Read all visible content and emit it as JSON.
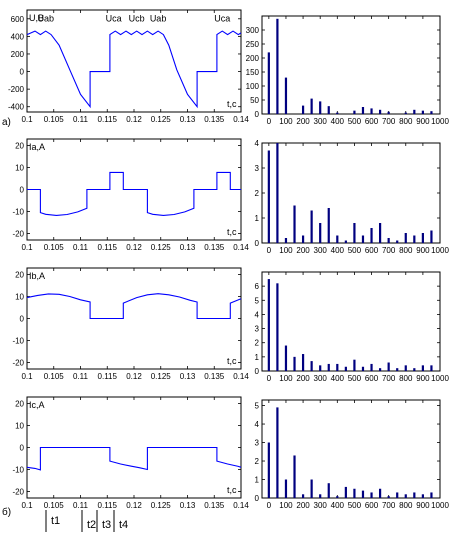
{
  "panel_letters": [
    "a)",
    "б)"
  ],
  "time_markers": [
    "t1",
    "t2",
    "t3",
    "t4"
  ],
  "chart_data": [
    {
      "type": "line",
      "ylabel": "U,B",
      "xlabel": "t,c",
      "xlim": [
        0.1,
        0.14
      ],
      "ylim": [
        -460,
        700
      ],
      "xticks": [
        0.1,
        0.105,
        0.11,
        0.115,
        0.12,
        0.125,
        0.13,
        0.135,
        0.14
      ],
      "xtick_labels": [
        "0.1",
        "0.105",
        "0.11",
        "0.115",
        "0.12",
        "0.125",
        "0.13",
        "0.135",
        "0.14"
      ],
      "yticks": [
        -400,
        -200,
        0,
        200,
        400,
        600
      ],
      "ytick_labels": [
        "-400",
        "-200",
        "0",
        "200",
        "400",
        "600"
      ],
      "annotations": [
        {
          "text": "Uab",
          "x": 0.1035,
          "y": 570
        },
        {
          "text": "Uca",
          "x": 0.1162,
          "y": 570
        },
        {
          "text": "Ucb",
          "x": 0.1205,
          "y": 570
        },
        {
          "text": "Uab",
          "x": 0.1245,
          "y": 570
        },
        {
          "text": "Uca",
          "x": 0.1365,
          "y": 570
        }
      ],
      "color": "#0000ff",
      "x": [
        0.1,
        0.1015,
        0.1025,
        0.1035,
        0.1045,
        0.106,
        0.108,
        0.11,
        0.1118,
        0.1118,
        0.1155,
        0.1155,
        0.1165,
        0.1175,
        0.1185,
        0.1195,
        0.1205,
        0.1215,
        0.1225,
        0.1235,
        0.1245,
        0.1255,
        0.1265,
        0.128,
        0.13,
        0.1318,
        0.1318,
        0.1355,
        0.1355,
        0.1365,
        0.1375,
        0.1385,
        0.1395,
        0.14
      ],
      "y": [
        420,
        460,
        420,
        460,
        420,
        300,
        20,
        -260,
        -400,
        0,
        0,
        420,
        460,
        420,
        460,
        420,
        460,
        420,
        460,
        420,
        460,
        420,
        300,
        20,
        -260,
        -400,
        0,
        0,
        420,
        460,
        420,
        460,
        420,
        440
      ]
    },
    {
      "type": "bar",
      "xlim": [
        -40,
        1000
      ],
      "ylim": [
        0,
        350
      ],
      "xticks": [
        0,
        100,
        200,
        300,
        400,
        500,
        600,
        700,
        800,
        900,
        1000
      ],
      "xtick_labels": [
        "0",
        "100",
        "200",
        "300",
        "400",
        "500",
        "600",
        "700",
        "800",
        "900",
        "1000"
      ],
      "yticks": [
        0,
        50,
        100,
        150,
        200,
        250,
        300
      ],
      "ytick_labels": [
        "0",
        "50",
        "100",
        "150",
        "200",
        "250",
        "300"
      ],
      "color": "#00007f",
      "x": [
        0,
        50,
        100,
        150,
        200,
        250,
        300,
        350,
        400,
        450,
        500,
        550,
        600,
        650,
        700,
        750,
        800,
        850,
        900,
        950
      ],
      "values": [
        220,
        340,
        130,
        0,
        30,
        55,
        45,
        28,
        5,
        0,
        12,
        25,
        20,
        15,
        8,
        0,
        5,
        15,
        12,
        10
      ]
    },
    {
      "type": "line",
      "ylabel": "Ia,A",
      "xlabel": "t,c",
      "xlim": [
        0.1,
        0.14
      ],
      "ylim": [
        -23,
        23
      ],
      "xticks": [
        0.1,
        0.105,
        0.11,
        0.115,
        0.12,
        0.125,
        0.13,
        0.135,
        0.14
      ],
      "xtick_labels": [
        "0.1",
        "0.105",
        "0.11",
        "0.115",
        "0.12",
        "0.125",
        "0.13",
        "0.135",
        "0.14"
      ],
      "yticks": [
        -20,
        -10,
        0,
        10,
        20
      ],
      "ytick_labels": [
        "-20",
        "-10",
        "0",
        "10",
        "20"
      ],
      "color": "#0000ff",
      "x": [
        0.1,
        0.1025,
        0.1025,
        0.1035,
        0.1055,
        0.1075,
        0.1095,
        0.1112,
        0.1112,
        0.1155,
        0.1155,
        0.118,
        0.118,
        0.1225,
        0.1225,
        0.1235,
        0.1255,
        0.1275,
        0.1295,
        0.1312,
        0.1312,
        0.1355,
        0.1355,
        0.138,
        0.138,
        0.14
      ],
      "y": [
        0,
        0,
        -10.5,
        -11.3,
        -11.8,
        -11.4,
        -10.2,
        -8.5,
        0,
        0,
        7.8,
        7.8,
        0,
        0,
        -10.5,
        -11.3,
        -11.8,
        -11.4,
        -10.2,
        -8.5,
        0,
        0,
        7.8,
        7.8,
        0,
        0
      ]
    },
    {
      "type": "bar",
      "xlim": [
        -40,
        1000
      ],
      "ylim": [
        0,
        4
      ],
      "xticks": [
        0,
        100,
        200,
        300,
        400,
        500,
        600,
        700,
        800,
        900,
        1000
      ],
      "xtick_labels": [
        "0",
        "100",
        "200",
        "300",
        "400",
        "500",
        "600",
        "700",
        "800",
        "900",
        "1000"
      ],
      "yticks": [
        0,
        1,
        2,
        3,
        4
      ],
      "ytick_labels": [
        "0",
        "1",
        "2",
        "3",
        "4"
      ],
      "color": "#00007f",
      "x": [
        0,
        50,
        100,
        150,
        200,
        250,
        300,
        350,
        400,
        450,
        500,
        550,
        600,
        650,
        700,
        750,
        800,
        850,
        900,
        950
      ],
      "values": [
        3.7,
        4.0,
        0.2,
        1.5,
        0.3,
        1.3,
        0.8,
        1.4,
        0.3,
        0.1,
        0.8,
        0.3,
        0.6,
        0.8,
        0.2,
        0.1,
        0.4,
        0.3,
        0.4,
        0.5
      ]
    },
    {
      "type": "line",
      "ylabel": "Ib,A",
      "xlabel": "t,c",
      "xlim": [
        0.1,
        0.14
      ],
      "ylim": [
        -23,
        23
      ],
      "xticks": [
        0.1,
        0.105,
        0.11,
        0.115,
        0.12,
        0.125,
        0.13,
        0.135,
        0.14
      ],
      "xtick_labels": [
        "0.1",
        "0.105",
        "0.11",
        "0.115",
        "0.12",
        "0.125",
        "0.13",
        "0.135",
        "0.14"
      ],
      "yticks": [
        -20,
        -10,
        0,
        10,
        20
      ],
      "ytick_labels": [
        "-20",
        "-10",
        "0",
        "10",
        "20"
      ],
      "color": "#0000ff",
      "x": [
        0.1,
        0.102,
        0.104,
        0.106,
        0.108,
        0.11,
        0.1118,
        0.1118,
        0.118,
        0.118,
        0.1205,
        0.1225,
        0.1245,
        0.1265,
        0.1285,
        0.1305,
        0.1318,
        0.1318,
        0.138,
        0.138,
        0.14
      ],
      "y": [
        9.5,
        10.5,
        11.2,
        11.0,
        10.0,
        8.5,
        7.5,
        0,
        0,
        7.0,
        9.5,
        10.8,
        11.3,
        10.8,
        9.8,
        8.3,
        7.5,
        0,
        0,
        7.0,
        9.0
      ]
    },
    {
      "type": "bar",
      "xlim": [
        -40,
        1000
      ],
      "ylim": [
        0,
        7
      ],
      "xticks": [
        0,
        100,
        200,
        300,
        400,
        500,
        600,
        700,
        800,
        900,
        1000
      ],
      "xtick_labels": [
        "0",
        "100",
        "200",
        "300",
        "400",
        "500",
        "600",
        "700",
        "800",
        "900",
        "1000"
      ],
      "yticks": [
        0,
        1,
        2,
        3,
        4,
        5,
        6
      ],
      "ytick_labels": [
        "0",
        "1",
        "2",
        "3",
        "4",
        "5",
        "6"
      ],
      "color": "#00007f",
      "x": [
        0,
        50,
        100,
        150,
        200,
        250,
        300,
        350,
        400,
        450,
        500,
        550,
        600,
        650,
        700,
        750,
        800,
        850,
        900,
        950
      ],
      "values": [
        6.5,
        6.2,
        1.8,
        1.0,
        1.2,
        0.7,
        0.4,
        0.5,
        0.5,
        0.3,
        0.8,
        0.3,
        0.5,
        0.2,
        0.6,
        0.2,
        0.4,
        0.2,
        0.4,
        0.4
      ]
    },
    {
      "type": "line",
      "ylabel": "Ic,A",
      "xlabel": "t,c",
      "xlim": [
        0.1,
        0.14
      ],
      "ylim": [
        -23,
        23
      ],
      "xticks": [
        0.1,
        0.105,
        0.11,
        0.115,
        0.12,
        0.125,
        0.13,
        0.135,
        0.14
      ],
      "xtick_labels": [
        "0.1",
        "0.105",
        "0.11",
        "0.115",
        "0.12",
        "0.125",
        "0.13",
        "0.135",
        "0.14"
      ],
      "yticks": [
        -20,
        -10,
        0,
        10,
        20
      ],
      "ytick_labels": [
        "-20",
        "-10",
        "0",
        "10",
        "20"
      ],
      "color": "#0000ff",
      "x": [
        0.1,
        0.1015,
        0.1025,
        0.1025,
        0.1155,
        0.1155,
        0.1175,
        0.1195,
        0.121,
        0.1225,
        0.1225,
        0.1355,
        0.1355,
        0.1375,
        0.1395,
        0.14
      ],
      "y": [
        -9.0,
        -9.5,
        -10.2,
        0,
        0,
        -6.2,
        -7.5,
        -8.5,
        -9.2,
        -10.0,
        0,
        0,
        -6.2,
        -7.5,
        -8.6,
        -9.0
      ]
    },
    {
      "type": "bar",
      "xlim": [
        -40,
        1000
      ],
      "ylim": [
        0,
        5.3
      ],
      "xticks": [
        0,
        100,
        200,
        300,
        400,
        500,
        600,
        700,
        800,
        900,
        1000
      ],
      "xtick_labels": [
        "0",
        "100",
        "200",
        "300",
        "400",
        "500",
        "600",
        "700",
        "800",
        "900",
        "1000"
      ],
      "yticks": [
        0,
        1,
        2,
        3,
        4,
        5
      ],
      "ytick_labels": [
        "0",
        "1",
        "2",
        "3",
        "4",
        "5"
      ],
      "color": "#00007f",
      "x": [
        0,
        50,
        100,
        150,
        200,
        250,
        300,
        350,
        400,
        450,
        500,
        550,
        600,
        650,
        700,
        750,
        800,
        850,
        900,
        950
      ],
      "values": [
        3.0,
        4.9,
        1.0,
        2.3,
        0.2,
        1.0,
        0.2,
        0.8,
        0.1,
        0.6,
        0.5,
        0.4,
        0.3,
        0.5,
        0.1,
        0.3,
        0.2,
        0.3,
        0.2,
        0.3
      ]
    }
  ]
}
